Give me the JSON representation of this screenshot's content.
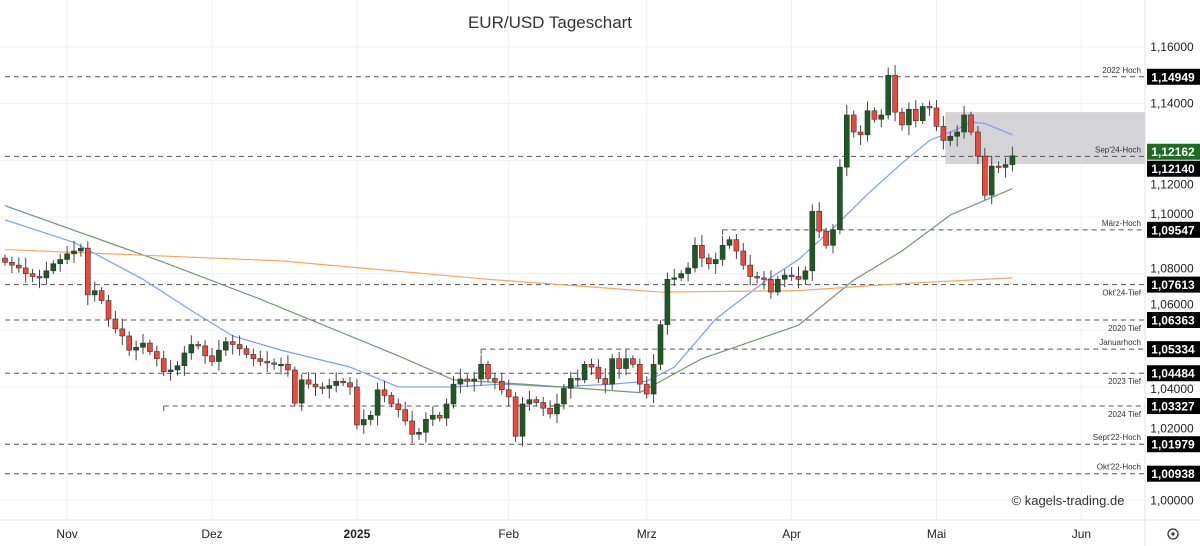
{
  "chart_data": {
    "type": "candlestick",
    "title": "EUR/USD Tageschart",
    "watermark": "© kagels-trading.de",
    "y_ticks": [
      "1,16000",
      "1,14000",
      "1,12000",
      "1,10000",
      "1,08000",
      "1,06000",
      "1,04000",
      "1,02000",
      "1,00000"
    ],
    "y_tick_values": [
      1.16,
      1.14,
      1.12,
      1.1,
      1.08,
      1.06,
      1.04,
      1.02,
      1.0
    ],
    "ylim": [
      1.0,
      1.16
    ],
    "x_ticks": [
      {
        "label": "Nov",
        "i": 9
      },
      {
        "label": "Dez",
        "i": 30
      },
      {
        "label": "2025",
        "i": 51,
        "bold": true
      },
      {
        "label": "Feb",
        "i": 73
      },
      {
        "label": "Mrz",
        "i": 93
      },
      {
        "label": "Apr",
        "i": 114
      },
      {
        "label": "Mai",
        "i": 135
      },
      {
        "label": "Jun",
        "i": 156
      }
    ],
    "closes": [
      1.084,
      1.083,
      1.082,
      1.08,
      1.079,
      1.0785,
      1.081,
      1.0835,
      1.085,
      1.087,
      1.088,
      1.089,
      1.0725,
      1.074,
      1.0705,
      1.064,
      1.0605,
      1.058,
      1.053,
      1.054,
      1.0555,
      1.0525,
      1.05,
      1.0454,
      1.046,
      1.0475,
      1.052,
      1.055,
      1.0545,
      1.051,
      1.049,
      1.053,
      1.056,
      1.055,
      1.0535,
      1.0515,
      1.05,
      1.049,
      1.0485,
      1.048,
      1.048,
      1.046,
      1.0343,
      1.0425,
      1.041,
      1.04,
      1.0395,
      1.0405,
      1.042,
      1.0415,
      1.04,
      1.0266,
      1.0285,
      1.03,
      1.039,
      1.037,
      1.034,
      1.032,
      1.028,
      1.0233,
      1.024,
      1.0286,
      1.03,
      1.029,
      1.034,
      1.041,
      1.0428,
      1.042,
      1.0428,
      1.048,
      1.043,
      1.042,
      1.039,
      1.0365,
      1.0226,
      1.034,
      1.0355,
      1.0345,
      1.0325,
      1.0305,
      1.034,
      1.0395,
      1.043,
      1.0425,
      1.048,
      1.047,
      1.043,
      1.041,
      1.05,
      1.0465,
      1.05,
      1.048,
      1.041,
      1.0375,
      1.048,
      1.062,
      1.078,
      1.0785,
      1.08,
      1.082,
      1.09,
      1.0855,
      1.0835,
      1.085,
      1.09,
      1.092,
      1.088,
      1.083,
      1.079,
      1.0785,
      1.078,
      1.0735,
      1.078,
      1.0795,
      1.079,
      1.078,
      1.081,
      1.102,
      1.095,
      1.09,
      1.0955,
      1.1176,
      1.136,
      1.13,
      1.129,
      1.1375,
      1.1345,
      1.136,
      1.15,
      1.137,
      1.1325,
      1.138,
      1.134,
      1.139,
      1.1385,
      1.132,
      1.127,
      1.1285,
      1.13,
      1.136,
      1.13,
      1.1215,
      1.1077,
      1.118,
      1.1175,
      1.1185,
      1.1216
    ],
    "first_open": 1.0855,
    "moving_averages": [
      {
        "name": "SMA20",
        "color": "#7b9ef5",
        "points": [
          [
            0,
            1.099
          ],
          [
            10,
            1.091
          ],
          [
            20,
            1.078
          ],
          [
            27,
            1.067
          ],
          [
            33,
            1.058
          ],
          [
            40,
            1.053
          ],
          [
            50,
            1.047
          ],
          [
            57,
            1.04
          ],
          [
            65,
            1.04
          ],
          [
            72,
            1.041
          ],
          [
            80,
            1.04
          ],
          [
            88,
            1.041
          ],
          [
            93,
            1.042
          ],
          [
            97,
            1.047
          ],
          [
            103,
            1.064
          ],
          [
            110,
            1.077
          ],
          [
            115,
            1.085
          ],
          [
            120,
            1.096
          ],
          [
            125,
            1.108
          ],
          [
            130,
            1.119
          ],
          [
            134,
            1.127
          ],
          [
            138,
            1.131
          ],
          [
            140,
            1.1335
          ],
          [
            142,
            1.133
          ],
          [
            146,
            1.129
          ]
        ]
      },
      {
        "name": "SMA50",
        "color": "#6f9a6f",
        "points": [
          [
            0,
            1.104
          ],
          [
            23,
            1.084
          ],
          [
            37,
            1.071
          ],
          [
            57,
            1.051
          ],
          [
            65,
            1.0425
          ],
          [
            75,
            1.041
          ],
          [
            92,
            1.038
          ],
          [
            101,
            1.05
          ],
          [
            115,
            1.0618
          ],
          [
            123,
            1.0777
          ],
          [
            130,
            1.088
          ],
          [
            137,
            1.1007
          ],
          [
            146,
            1.11
          ]
        ]
      },
      {
        "name": "SMA200",
        "color": "#f7a660",
        "points": [
          [
            0,
            1.0885
          ],
          [
            40,
            1.0845
          ],
          [
            70,
            1.078
          ],
          [
            95,
            1.0735
          ],
          [
            115,
            1.074
          ],
          [
            130,
            1.0765
          ],
          [
            146,
            1.0785
          ]
        ]
      }
    ],
    "levels": [
      {
        "value": 1.14949,
        "price_label": "1,14949",
        "name": "2022 Hoch",
        "label_pos": "above",
        "from_i": 0
      },
      {
        "value": 1.1214,
        "price_label": "1,12140",
        "name": "Sep'24-Hoch",
        "label_pos": "above",
        "from_i": 0
      },
      {
        "value": 1.09547,
        "price_label": "1,09547",
        "name": "März-Hoch",
        "label_pos": "above",
        "from_i": 104
      },
      {
        "value": 1.07613,
        "price_label": "1,07613",
        "name": "Okt'24-Tief",
        "label_pos": "below",
        "from_i": 0
      },
      {
        "value": 1.06363,
        "price_label": "1,06363",
        "name": "2020 Tief",
        "label_pos": "below",
        "from_i": 0
      },
      {
        "value": 1.05334,
        "price_label": "1,05334",
        "name": "Januarhoch",
        "label_pos": "above",
        "from_i": 69
      },
      {
        "value": 1.04484,
        "price_label": "1,04484",
        "name": "2023 Tief",
        "label_pos": "below",
        "from_i": 0
      },
      {
        "value": 1.03327,
        "price_label": "1,03327",
        "name": "2024 Tief",
        "label_pos": "below",
        "from_i": 23
      },
      {
        "value": 1.01979,
        "price_label": "1,01979",
        "name": "Sept'22-Hoch",
        "label_pos": "above",
        "from_i": 0
      },
      {
        "value": 1.00938,
        "price_label": "1,00938",
        "name": "Okt'22-Hoch",
        "label_pos": "above",
        "from_i": 0
      }
    ],
    "zone": {
      "from_i": 137,
      "top": 1.137,
      "bottom": 1.1187
    },
    "current_price": {
      "value": 1.12162,
      "label": "1,12162",
      "color": "#1e6b22"
    },
    "colors": {
      "up": "#1d5a22",
      "down": "#f2463b",
      "border": "#333333"
    }
  }
}
